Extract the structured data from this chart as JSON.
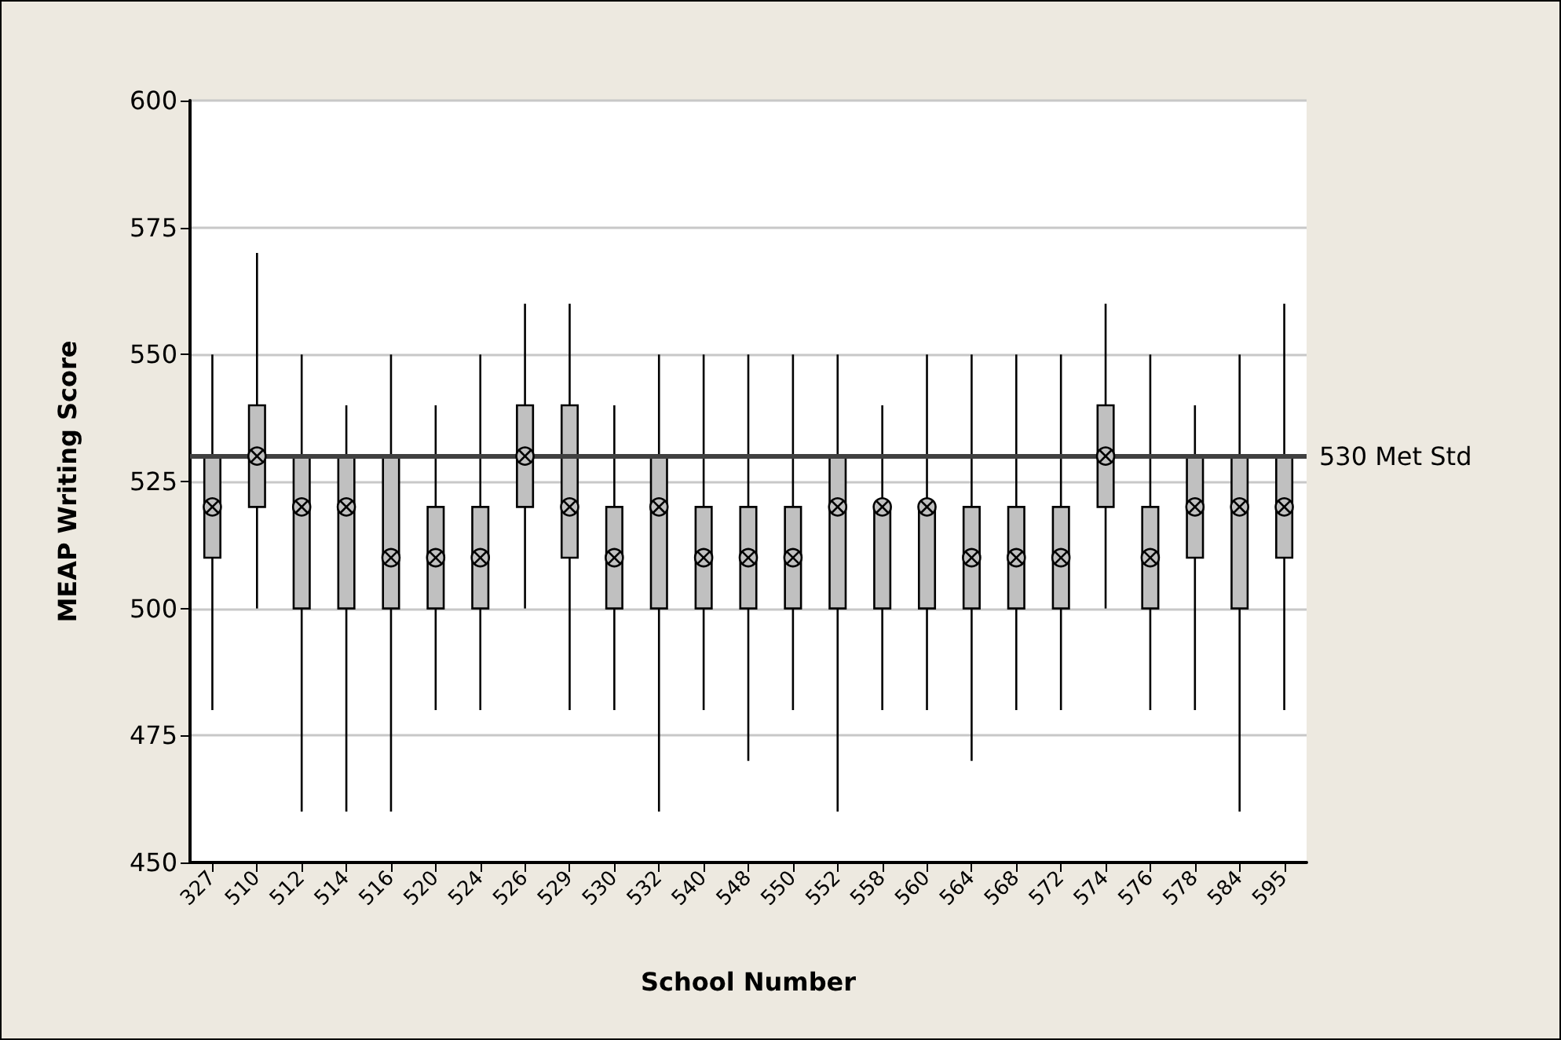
{
  "chart_data": {
    "type": "box",
    "xlabel": "School Number",
    "ylabel": "MEAP Writing Score",
    "categories": [
      "327",
      "510",
      "512",
      "514",
      "516",
      "520",
      "524",
      "526",
      "529",
      "530",
      "532",
      "540",
      "548",
      "550",
      "552",
      "558",
      "560",
      "564",
      "568",
      "572",
      "574",
      "576",
      "578",
      "584",
      "595"
    ],
    "color": "#c0c0c0",
    "boxes": [
      {
        "low": 480,
        "q1": 510,
        "median": 520,
        "q3": 530,
        "high": 550,
        "mean": 520
      },
      {
        "low": 500,
        "q1": 520,
        "median": 530,
        "q3": 540,
        "high": 570,
        "mean": 530
      },
      {
        "low": 460,
        "q1": 500,
        "median": 520,
        "q3": 530,
        "high": 550,
        "mean": 520
      },
      {
        "low": 460,
        "q1": 500,
        "median": 520,
        "q3": 530,
        "high": 540,
        "mean": 520
      },
      {
        "low": 460,
        "q1": 500,
        "median": 510,
        "q3": 530,
        "high": 550,
        "mean": 510
      },
      {
        "low": 480,
        "q1": 500,
        "median": 510,
        "q3": 520,
        "high": 540,
        "mean": 510
      },
      {
        "low": 480,
        "q1": 500,
        "median": 510,
        "q3": 520,
        "high": 550,
        "mean": 510
      },
      {
        "low": 500,
        "q1": 520,
        "median": 530,
        "q3": 540,
        "high": 560,
        "mean": 530
      },
      {
        "low": 480,
        "q1": 510,
        "median": 520,
        "q3": 540,
        "high": 560,
        "mean": 520
      },
      {
        "low": 480,
        "q1": 500,
        "median": 510,
        "q3": 520,
        "high": 540,
        "mean": 510
      },
      {
        "low": 460,
        "q1": 500,
        "median": 520,
        "q3": 530,
        "high": 550,
        "mean": 520
      },
      {
        "low": 480,
        "q1": 500,
        "median": 510,
        "q3": 520,
        "high": 550,
        "mean": 510
      },
      {
        "low": 470,
        "q1": 500,
        "median": 510,
        "q3": 520,
        "high": 550,
        "mean": 510
      },
      {
        "low": 480,
        "q1": 500,
        "median": 510,
        "q3": 520,
        "high": 550,
        "mean": 510
      },
      {
        "low": 460,
        "q1": 500,
        "median": 520,
        "q3": 530,
        "high": 550,
        "mean": 520
      },
      {
        "low": 480,
        "q1": 500,
        "median": 520,
        "q3": 520,
        "high": 540,
        "mean": 520
      },
      {
        "low": 480,
        "q1": 500,
        "median": 520,
        "q3": 520,
        "high": 550,
        "mean": 520
      },
      {
        "low": 470,
        "q1": 500,
        "median": 510,
        "q3": 520,
        "high": 550,
        "mean": 510
      },
      {
        "low": 480,
        "q1": 500,
        "median": 510,
        "q3": 520,
        "high": 550,
        "mean": 510
      },
      {
        "low": 480,
        "q1": 500,
        "median": 510,
        "q3": 520,
        "high": 550,
        "mean": 510
      },
      {
        "low": 500,
        "q1": 520,
        "median": 530,
        "q3": 540,
        "high": 560,
        "mean": 530
      },
      {
        "low": 480,
        "q1": 500,
        "median": 510,
        "q3": 520,
        "high": 550,
        "mean": 510
      },
      {
        "low": 480,
        "q1": 510,
        "median": 520,
        "q3": 530,
        "high": 540,
        "mean": 520
      },
      {
        "low": 460,
        "q1": 500,
        "median": 520,
        "q3": 530,
        "high": 550,
        "mean": 520
      },
      {
        "low": 480,
        "q1": 510,
        "median": 520,
        "q3": 530,
        "high": 560,
        "mean": 520
      }
    ],
    "ylim": [
      450,
      600
    ],
    "yticks": [
      450,
      475,
      500,
      525,
      550,
      575,
      600
    ],
    "grid": "y",
    "ref_lines": [
      {
        "axis": "y",
        "value": 530,
        "label": "530 Met Std",
        "color": "#404040"
      }
    ]
  }
}
